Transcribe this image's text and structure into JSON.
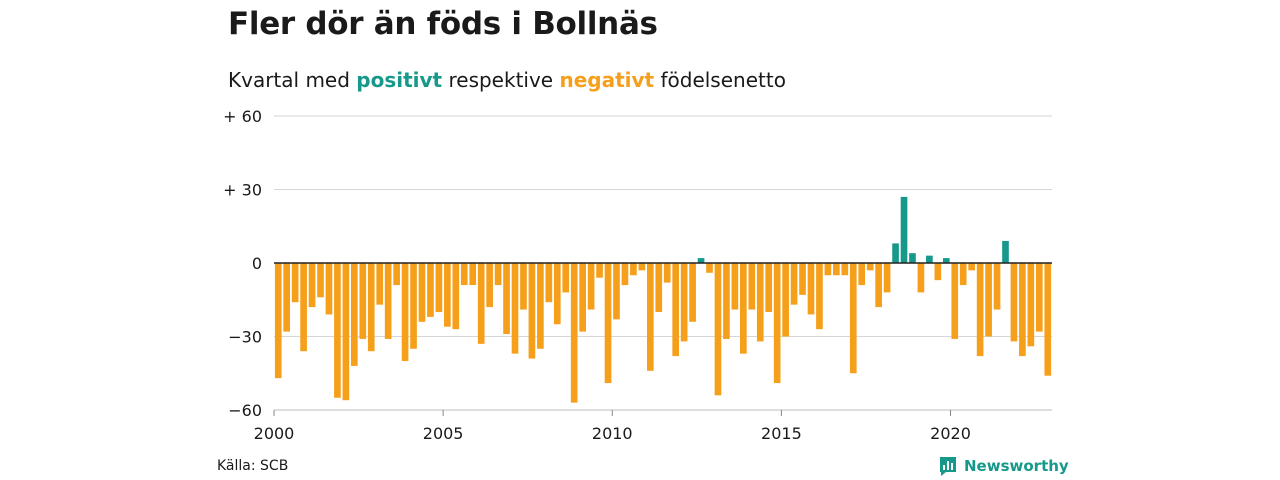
{
  "header": {
    "title": "Fler dör än föds i Bollnäs",
    "subtitle_pre": "Kvartal med ",
    "subtitle_pos": "positivt",
    "subtitle_mid": " respektive ",
    "subtitle_neg": "negativt",
    "subtitle_post": " födelsenetto"
  },
  "footer": {
    "source": "Källa: SCB",
    "brand": "Newsworthy"
  },
  "colors": {
    "positive": "#16998a",
    "negative": "#f59f1b",
    "grid": "#d6d6d6",
    "axis": "#222222",
    "text": "#1a1a1a"
  },
  "icons": {
    "brand": "bar-chart-speech-bubble-icon"
  },
  "chart_data": {
    "type": "bar",
    "title": "Fler dör än föds i Bollnäs",
    "subtitle": "Kvartal med positivt respektive negativt födelsenetto",
    "xlabel": "",
    "ylabel": "",
    "ylim": [
      -60,
      60
    ],
    "y_ticks": [
      60,
      30,
      0,
      -30,
      -60
    ],
    "y_tick_labels": [
      "+ 60",
      "+ 30",
      "0",
      "−30",
      "−60"
    ],
    "x_ticks": [
      2000,
      2005,
      2010,
      2015,
      2020
    ],
    "x_tick_labels": [
      "2000",
      "2005",
      "2010",
      "2015",
      "2020"
    ],
    "x_start": 2000,
    "x_end": 2023,
    "period": "quarter",
    "first_period": "2000 Q1",
    "grid": true,
    "legend": "none",
    "values": [
      -47,
      -28,
      -16,
      -36,
      -18,
      -14,
      -21,
      -55,
      -56,
      -42,
      -31,
      -36,
      -17,
      -31,
      -9,
      -40,
      -35,
      -24,
      -22,
      -20,
      -26,
      -27,
      -9,
      -9,
      -33,
      -18,
      -9,
      -29,
      -37,
      -19,
      -39,
      -35,
      -16,
      -25,
      -12,
      -57,
      -28,
      -19,
      -6,
      -49,
      -23,
      -9,
      -5,
      -3,
      -44,
      -20,
      -8,
      -38,
      -32,
      -24,
      2,
      -4,
      -54,
      -31,
      -19,
      -37,
      -19,
      -32,
      -20,
      -49,
      -30,
      -17,
      -13,
      -21,
      -27,
      -5,
      -5,
      -5,
      -45,
      -9,
      -3,
      -18,
      -12,
      8,
      27,
      4,
      -12,
      3,
      -7,
      2,
      -31,
      -9,
      -3,
      -38,
      -30,
      -19,
      9,
      -32,
      -38,
      -34,
      -28,
      -46
    ]
  }
}
